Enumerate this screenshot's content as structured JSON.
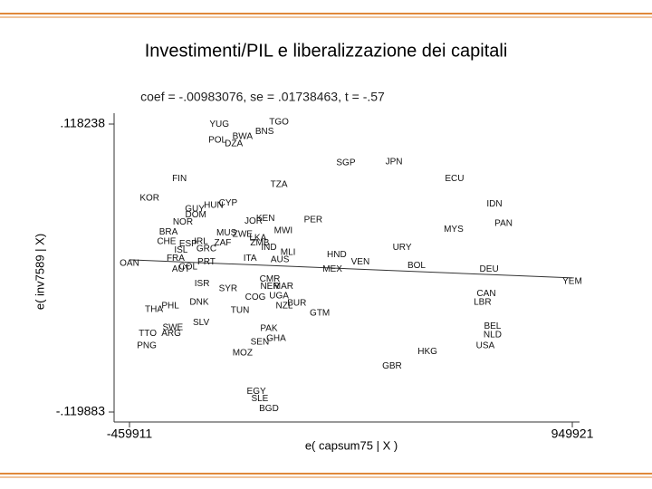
{
  "header": {
    "title": "Investimenti/PIL e liberalizzazione dei capitali"
  },
  "chart_data": {
    "type": "scatter",
    "annotation": "coef = -.00983076, se = .01738463, t = -.57",
    "x_label": "e( capsum75 | X )",
    "y_label": "e( inv7589 | X)",
    "xlim": [
      -459911,
      949921
    ],
    "ylim": [
      -0.119883,
      0.118238
    ],
    "xticks": [
      -459911,
      949921
    ],
    "yticks": [
      {
        "value": 0.118238,
        "label": ".118238"
      },
      {
        "value": -0.119883,
        "label": "-.119883"
      }
    ],
    "color": "#111111",
    "fit_line": {
      "x": [
        -459911,
        949921
      ],
      "y": [
        0.006,
        -0.009
      ]
    },
    "labels": [
      "YUG",
      "TGO",
      "BNS",
      "POL",
      "BWA",
      "DZA",
      "SGP",
      "JPN",
      "ECU",
      "FIN",
      "TZA",
      "KOR",
      "GUY",
      "HUN",
      "CYP",
      "IDN",
      "DOM",
      "JOR",
      "KEN",
      "PER",
      "NOR",
      "MWI",
      "MYS",
      "PAN",
      "BRA",
      "MUS",
      "ZWE",
      "LKA",
      "ZMB",
      "CHE",
      "ESP",
      "IRL",
      "ZAF",
      "GRC",
      "ISL",
      "IND",
      "MLI",
      "HND",
      "URY",
      "FRA",
      "ITA",
      "AUS",
      "VEN",
      "BOL",
      "DEU",
      "MEX",
      "OAN",
      "PRT",
      "COL",
      "AUT",
      "CMR",
      "NER",
      "MAR",
      "YEM",
      "ISR",
      "SYR",
      "CAN",
      "LBR",
      "COG",
      "UGA",
      "NZL",
      "BUR",
      "THA",
      "PHL",
      "DNK",
      "TUN",
      "GTM",
      "SLV",
      "SWE",
      "TTO",
      "ARG",
      "PAK",
      "BEL",
      "NLD",
      "GHA",
      "SEN",
      "USA",
      "PNG",
      "MOZ",
      "HKG",
      "GBR",
      "EGY",
      "SLE",
      "BGD"
    ],
    "x": [
      -174000,
      16000,
      -30000,
      -180000,
      -100000,
      -128000,
      229000,
      382000,
      575000,
      -301000,
      16000,
      -396000,
      -252000,
      -192000,
      -146000,
      702000,
      -249000,
      -65000,
      -27000,
      125000,
      -290000,
      30000,
      572000,
      731000,
      -336000,
      -151000,
      -100000,
      -51000,
      -45000,
      -342000,
      -273000,
      -232000,
      -163000,
      -215000,
      -296000,
      -16000,
      45000,
      200000,
      408000,
      -313000,
      -76000,
      19000,
      275000,
      454000,
      685000,
      186000,
      -460000,
      -215000,
      -273000,
      -296000,
      -13000,
      -13000,
      30000,
      949876,
      -229000,
      -146000,
      676000,
      664000,
      -59000,
      16000,
      33000,
      73000,
      -382000,
      -330000,
      -238000,
      -108000,
      146000,
      -232000,
      -322000,
      -402000,
      -327000,
      -16000,
      696000,
      696000,
      7000,
      -45000,
      673000,
      -405000,
      -100000,
      489000,
      376000,
      -56000,
      -45000,
      -16000
    ],
    "y": [
      0.118,
      0.12,
      0.112,
      0.105,
      0.108,
      0.102,
      0.086,
      0.087,
      0.073,
      0.073,
      0.068,
      0.057,
      0.048,
      0.051,
      0.053,
      0.052,
      0.043,
      0.038,
      0.04,
      0.039,
      0.037,
      0.03,
      0.031,
      0.036,
      0.029,
      0.028,
      0.027,
      0.024,
      0.02,
      0.021,
      0.019,
      0.021,
      0.02,
      0.015,
      0.014,
      0.016,
      0.012,
      0.01,
      0.016,
      0.007,
      0.007,
      0.006,
      0.004,
      0.001,
      -0.002,
      -0.002,
      0.003,
      0.004,
      0,
      -0.002,
      -0.01,
      -0.016,
      -0.016,
      -0.012,
      -0.014,
      -0.018,
      -0.022,
      -0.029,
      -0.025,
      -0.024,
      -0.032,
      -0.03,
      -0.035,
      -0.032,
      -0.029,
      -0.036,
      -0.038,
      -0.046,
      -0.05,
      -0.055,
      -0.055,
      -0.051,
      -0.049,
      -0.056,
      -0.059,
      -0.062,
      -0.065,
      -0.065,
      -0.071,
      -0.07,
      -0.082,
      -0.103,
      -0.109,
      -0.117
    ]
  }
}
